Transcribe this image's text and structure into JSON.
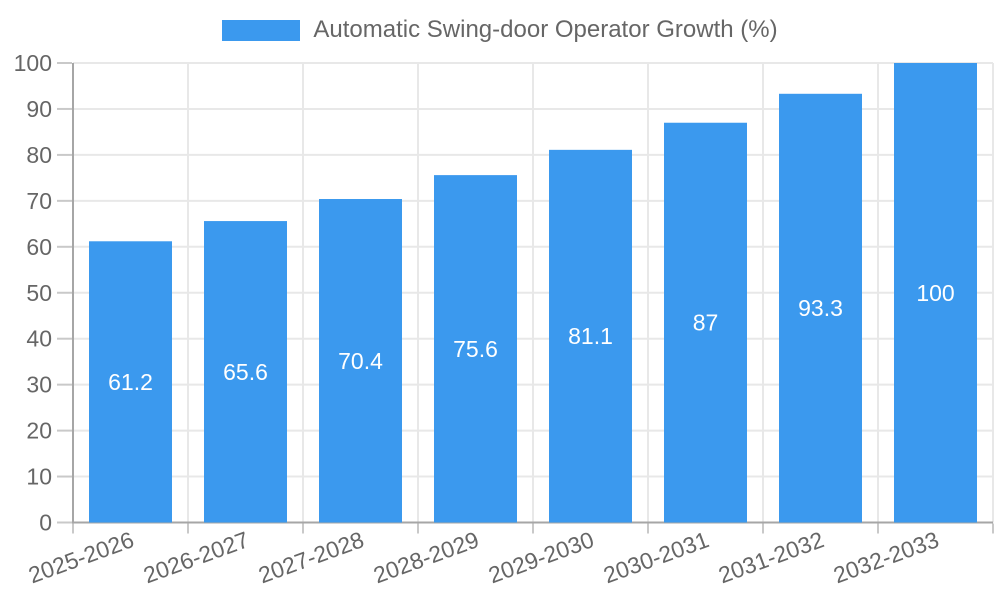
{
  "chart_data": {
    "type": "bar",
    "title": "Automatic Swing-door Operator Growth (%)",
    "categories": [
      "2025-2026",
      "2026-2027",
      "2027-2028",
      "2028-2029",
      "2029-2030",
      "2030-2031",
      "2031-2032",
      "2032-2033"
    ],
    "values": [
      61.2,
      65.6,
      70.4,
      75.6,
      81.1,
      87,
      93.3,
      100
    ],
    "value_labels": [
      "61.2",
      "65.6",
      "70.4",
      "75.6",
      "81.1",
      "87",
      "93.3",
      "100"
    ],
    "xlabel": "",
    "ylabel": "",
    "ylim": [
      0,
      100
    ],
    "yticks": [
      0,
      10,
      20,
      30,
      40,
      50,
      60,
      70,
      80,
      90,
      100
    ],
    "grid": true,
    "legend_position": "top",
    "x_label_rotation_deg": -20,
    "colors": {
      "bar": "#3b99ee",
      "bar_label": "#ffffff",
      "axis_text": "#666666",
      "grid_line": "#e8e8e8",
      "axis_line": "#a6a6a6",
      "tick_mark": "#c9c9c9",
      "background": "#ffffff"
    }
  }
}
